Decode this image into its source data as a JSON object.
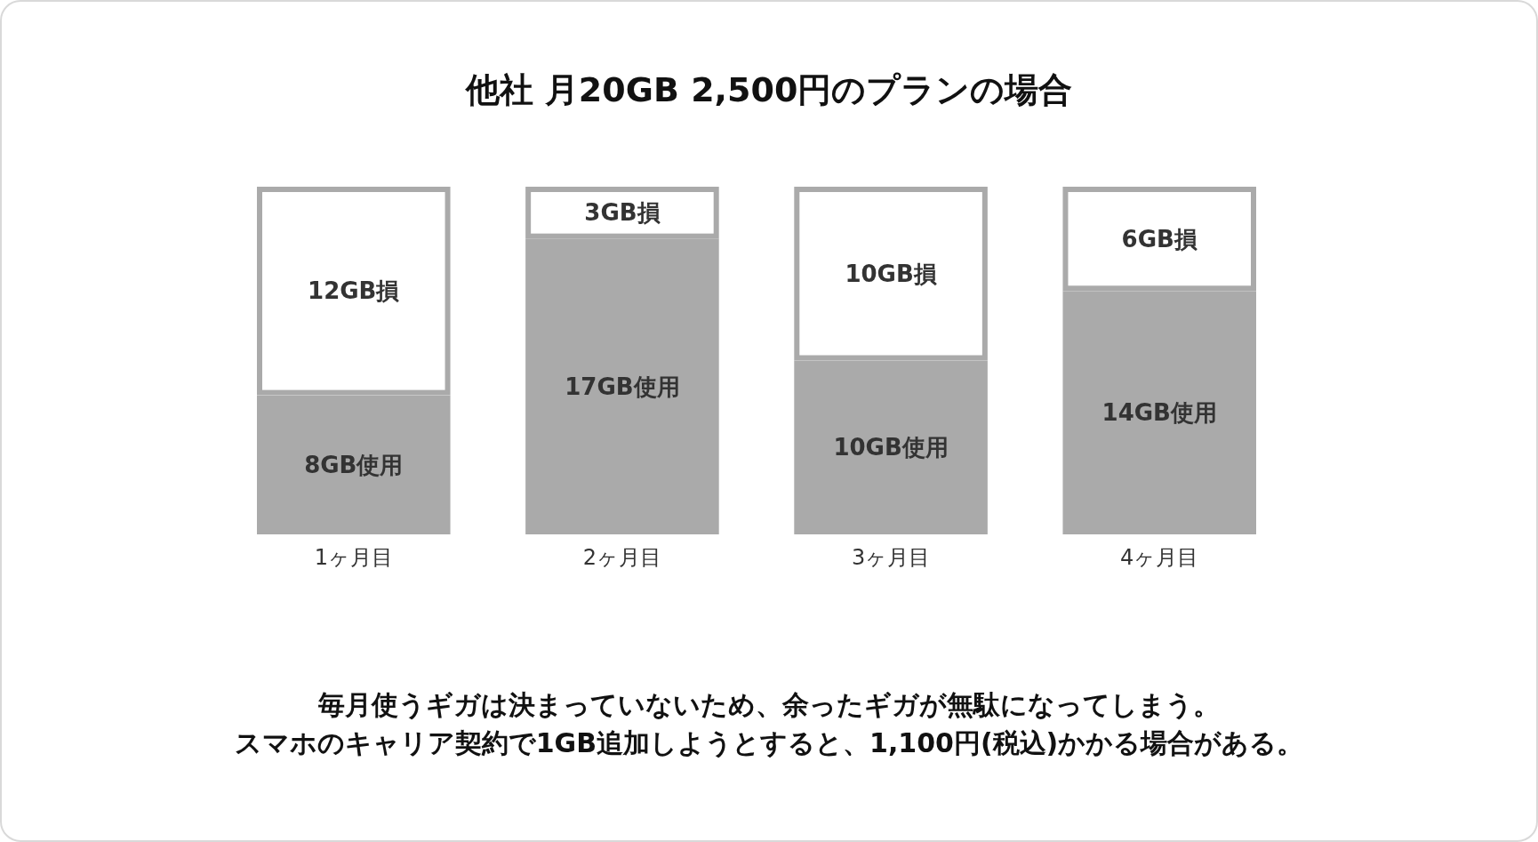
{
  "chart_data": {
    "type": "bar",
    "stacked": true,
    "title": "他社 月20GB 2,500円のプランの場合",
    "categories": [
      "1ヶ月目",
      "2ヶ月目",
      "3ヶ月目",
      "4ヶ月目"
    ],
    "series": [
      {
        "color": "#aaaaaa",
        "values": [
          8,
          17,
          10,
          14
        ],
        "value_labels": [
          "8GB使用",
          "17GB使用",
          "10GB使用",
          "14GB使用"
        ]
      },
      {
        "color": "#ffffff",
        "values": [
          12,
          3,
          10,
          6
        ],
        "value_labels": [
          "12GB損",
          "3GB損",
          "10GB損",
          "6GB損"
        ]
      }
    ],
    "annotations": [
      "毎月使うギガは決まっていないため、余ったギガが無駄になってしまう。",
      "スマホのキャリア契約で1GB追加しようとすると、1,100円(税込)かかる場合がある。"
    ]
  }
}
